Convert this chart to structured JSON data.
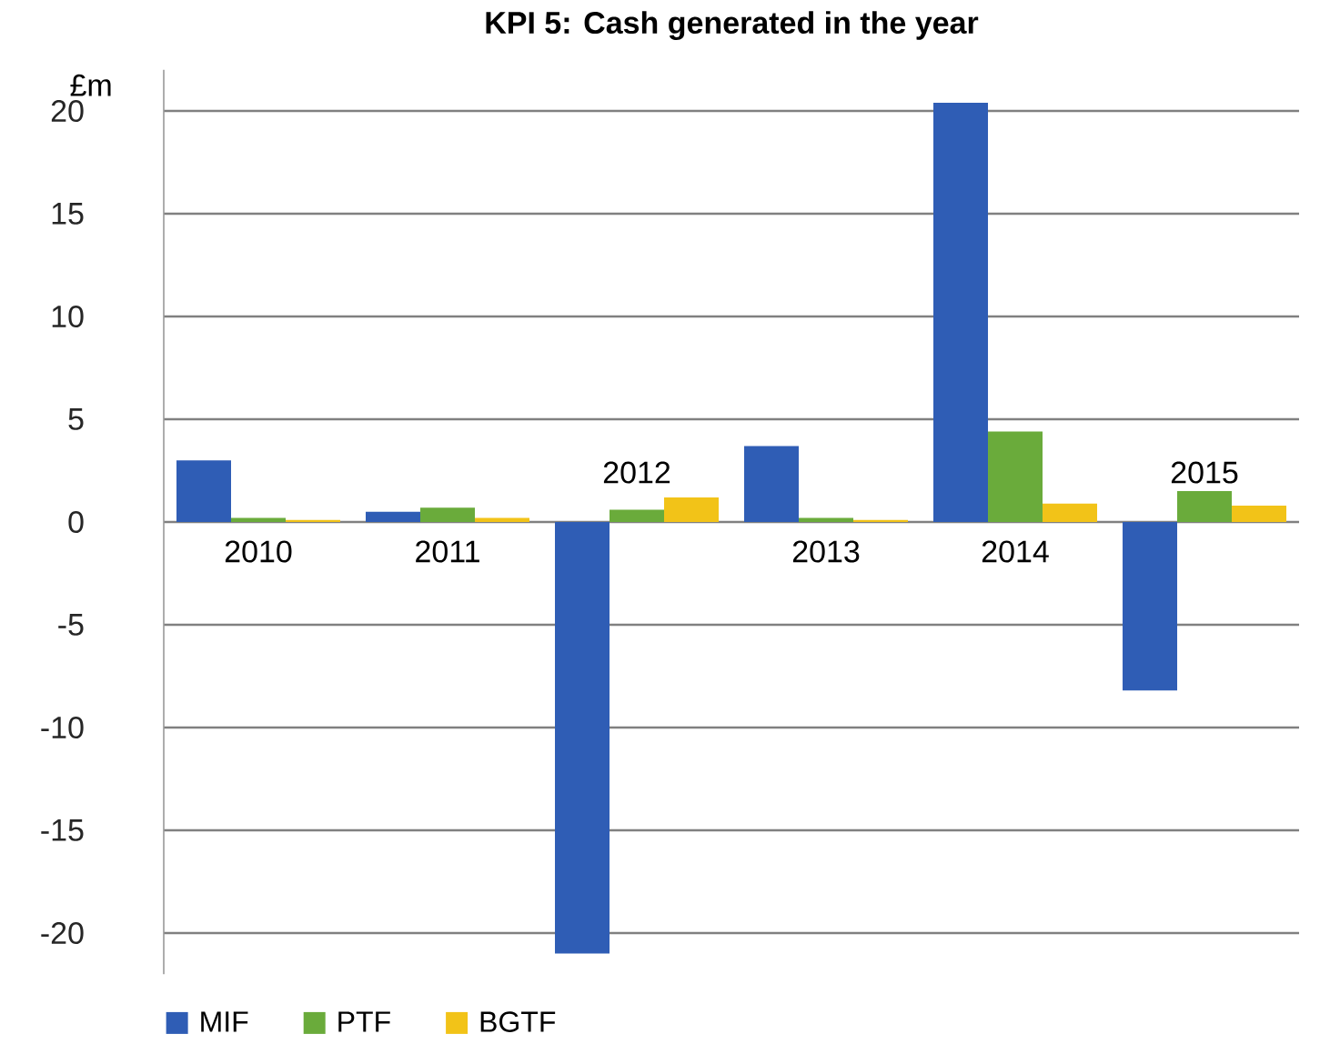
{
  "chart_data": {
    "type": "bar",
    "title": "KPI 5: Cash generated in the year",
    "ylabel": "£m",
    "categories": [
      "2010",
      "2011",
      "2012",
      "2013",
      "2014",
      "2015"
    ],
    "series": [
      {
        "name": "MIF",
        "color": "#2f5db5",
        "values": [
          3.0,
          0.5,
          -21.0,
          3.7,
          20.4,
          -8.2
        ]
      },
      {
        "name": "PTF",
        "color": "#6aab3b",
        "values": [
          0.2,
          0.7,
          0.6,
          0.2,
          4.4,
          1.5
        ]
      },
      {
        "name": "BGTF",
        "color": "#f2c318",
        "values": [
          0.1,
          0.2,
          1.2,
          0.1,
          0.9,
          0.8
        ]
      }
    ],
    "ylim": [
      -22,
      22
    ],
    "yticks": [
      -20,
      -15,
      -10,
      -5,
      0,
      5,
      10,
      15,
      20
    ],
    "grid": "y",
    "legend": "bottom"
  }
}
